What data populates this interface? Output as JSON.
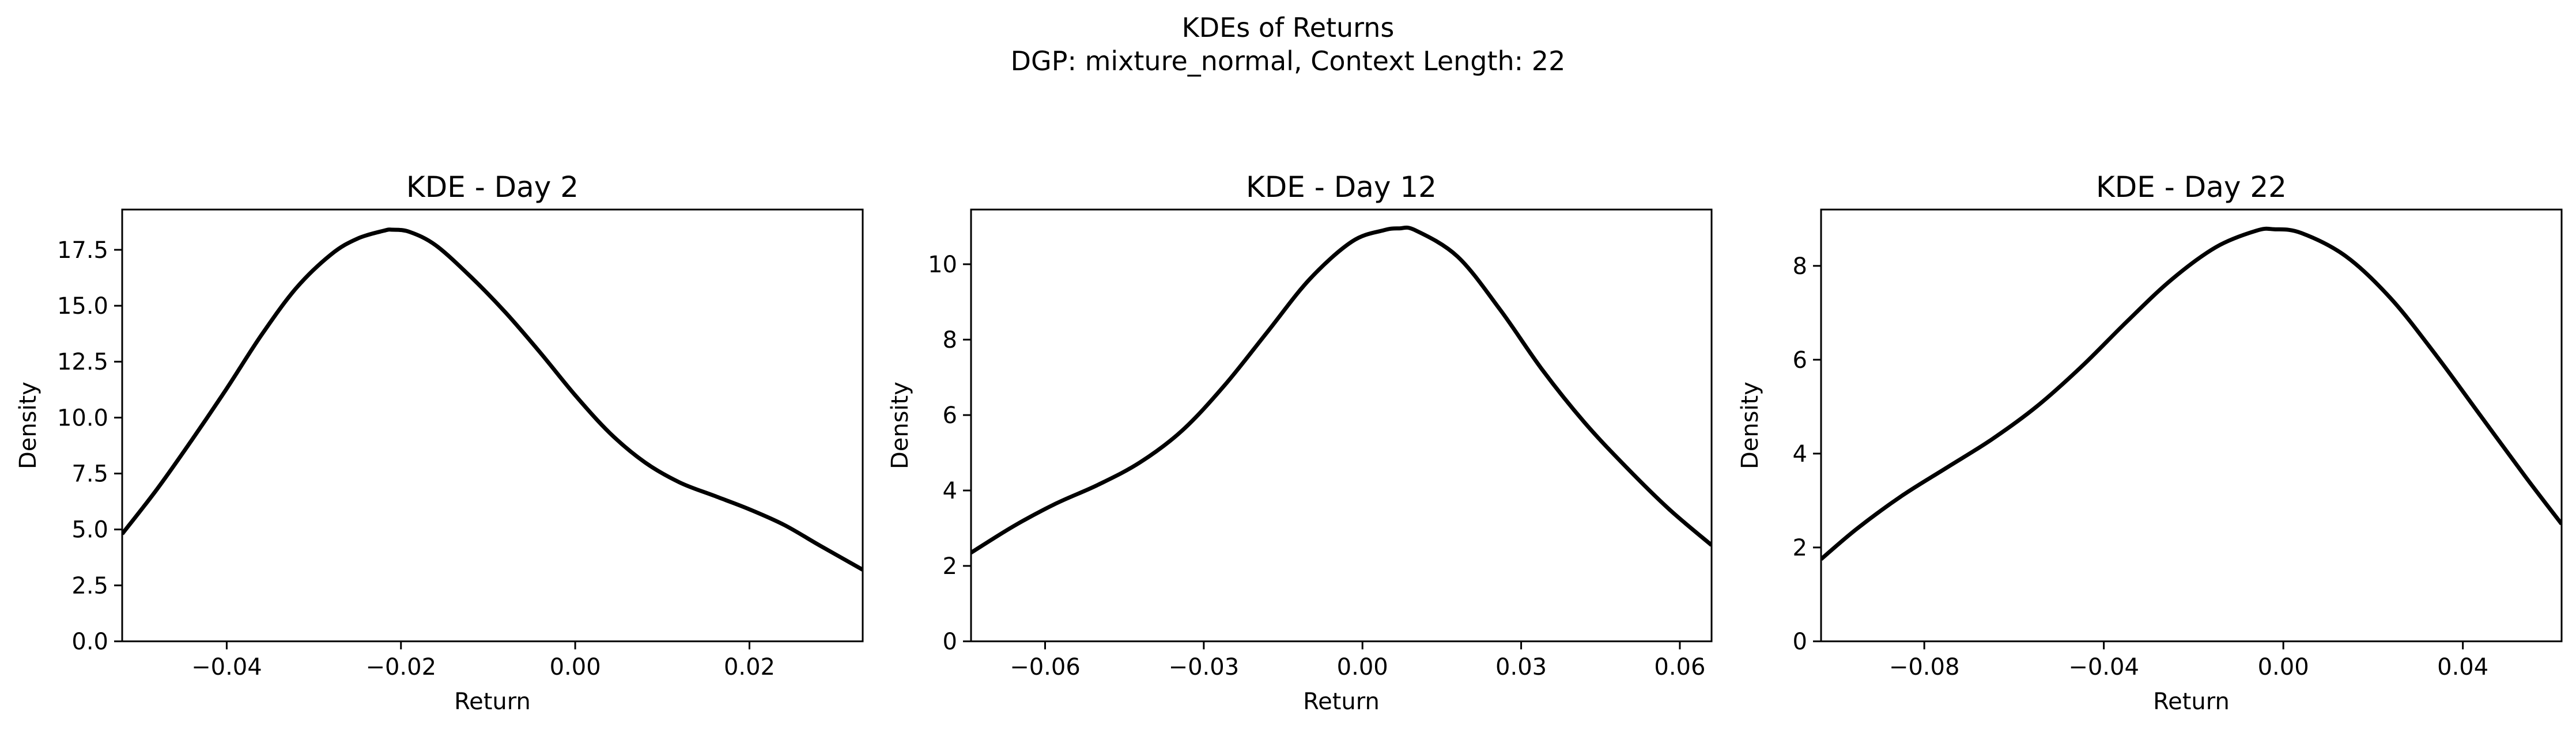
{
  "figure": {
    "title_line1": "KDEs of Returns",
    "title_line2": "DGP: mixture_normal, Context Length: 22"
  },
  "chart_data": [
    {
      "type": "line",
      "title": "KDE - Day 2",
      "xlabel": "Return",
      "ylabel": "Density",
      "xlim": [
        -0.052,
        0.033
      ],
      "ylim": [
        0,
        19.3
      ],
      "xticks": [
        -0.04,
        -0.02,
        0.0,
        0.02
      ],
      "xtick_labels": [
        "−0.04",
        "−0.02",
        "0.00",
        "0.02"
      ],
      "yticks": [
        0,
        2.5,
        5.0,
        7.5,
        10.0,
        12.5,
        15.0,
        17.5
      ],
      "ytick_labels": [
        "0.0",
        "2.5",
        "5.0",
        "7.5",
        "10.0",
        "12.5",
        "15.0",
        "17.5"
      ],
      "color": "#000000",
      "x": [
        -0.052,
        -0.048,
        -0.044,
        -0.04,
        -0.036,
        -0.032,
        -0.028,
        -0.025,
        -0.022,
        -0.021,
        -0.019,
        -0.016,
        -0.012,
        -0.008,
        -0.004,
        0.0,
        0.004,
        0.008,
        0.012,
        0.016,
        0.02,
        0.024,
        0.028,
        0.033
      ],
      "y": [
        4.8,
        6.8,
        9.0,
        11.3,
        13.7,
        15.8,
        17.3,
        18.0,
        18.35,
        18.4,
        18.3,
        17.7,
        16.3,
        14.7,
        12.9,
        11.0,
        9.3,
        8.0,
        7.1,
        6.5,
        5.9,
        5.2,
        4.3,
        3.2
      ]
    },
    {
      "type": "line",
      "title": "KDE - Day 12",
      "xlabel": "Return",
      "ylabel": "Density",
      "xlim": [
        -0.074,
        0.066
      ],
      "ylim": [
        0,
        11.45
      ],
      "xticks": [
        -0.06,
        -0.03,
        0.0,
        0.03,
        0.06
      ],
      "xtick_labels": [
        "−0.06",
        "−0.03",
        "0.00",
        "0.03",
        "0.06"
      ],
      "yticks": [
        0,
        2,
        4,
        6,
        8,
        10
      ],
      "ytick_labels": [
        "0",
        "2",
        "4",
        "6",
        "8",
        "10"
      ],
      "color": "#000000",
      "x": [
        -0.074,
        -0.066,
        -0.058,
        -0.05,
        -0.042,
        -0.034,
        -0.026,
        -0.018,
        -0.01,
        -0.002,
        0.004,
        0.007,
        0.01,
        0.018,
        0.026,
        0.034,
        0.042,
        0.05,
        0.058,
        0.066
      ],
      "y": [
        2.35,
        3.05,
        3.65,
        4.15,
        4.75,
        5.6,
        6.8,
        8.2,
        9.6,
        10.6,
        10.9,
        10.95,
        10.9,
        10.2,
        8.8,
        7.2,
        5.8,
        4.6,
        3.5,
        2.55
      ]
    },
    {
      "type": "line",
      "title": "KDE - Day 22",
      "xlabel": "Return",
      "ylabel": "Density",
      "xlim": [
        -0.103,
        0.062
      ],
      "ylim": [
        0,
        9.2
      ],
      "xticks": [
        -0.08,
        -0.04,
        0.0,
        0.04
      ],
      "xtick_labels": [
        "−0.08",
        "−0.04",
        "0.00",
        "0.04"
      ],
      "yticks": [
        0,
        2,
        4,
        6,
        8
      ],
      "ytick_labels": [
        "0",
        "2",
        "4",
        "6",
        "8"
      ],
      "color": "#000000",
      "x": [
        -0.103,
        -0.095,
        -0.085,
        -0.075,
        -0.065,
        -0.055,
        -0.045,
        -0.035,
        -0.025,
        -0.015,
        -0.006,
        -0.002,
        0.004,
        0.014,
        0.024,
        0.034,
        0.044,
        0.054,
        0.062
      ],
      "y": [
        1.75,
        2.4,
        3.1,
        3.7,
        4.3,
        5.0,
        5.85,
        6.8,
        7.7,
        8.4,
        8.75,
        8.78,
        8.7,
        8.2,
        7.3,
        6.1,
        4.8,
        3.5,
        2.5
      ]
    }
  ]
}
